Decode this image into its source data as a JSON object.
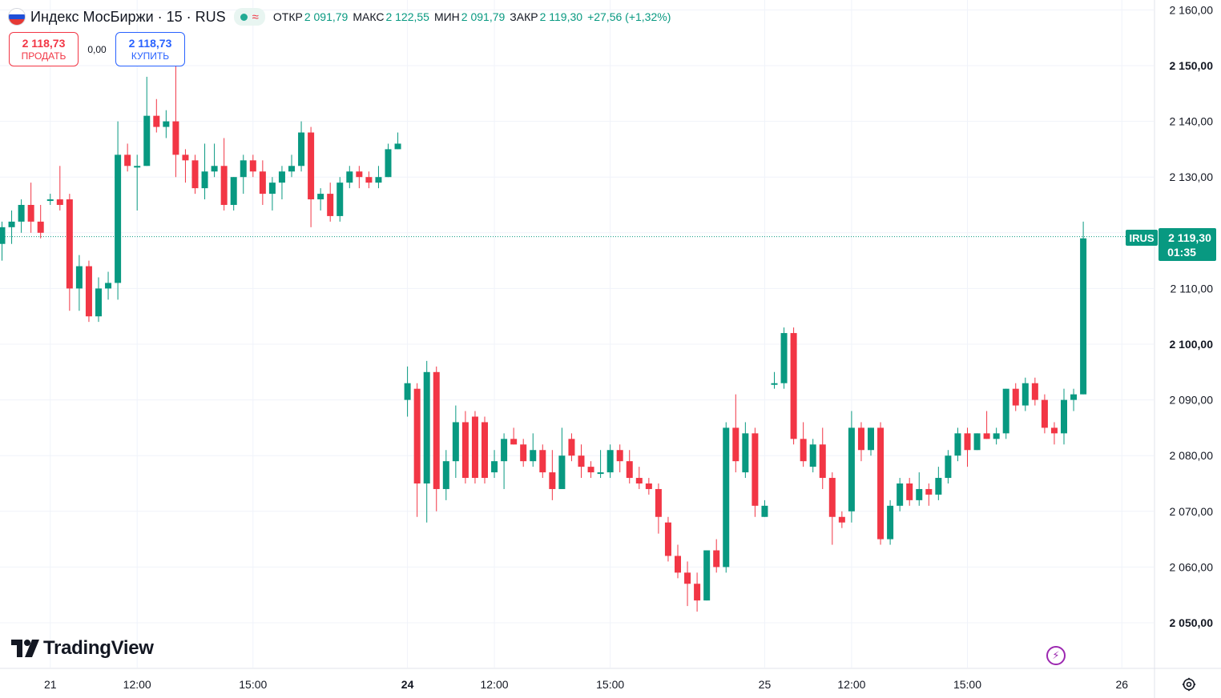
{
  "header": {
    "title": "Индекс МосБиржи · 15 · RUS",
    "status_wave": "≈",
    "ohlc": [
      {
        "label": "ОТКР",
        "value": "2 091,79"
      },
      {
        "label": "МАКС",
        "value": "2 122,55"
      },
      {
        "label": "МИН",
        "value": "2 091,79"
      },
      {
        "label": "ЗАКР",
        "value": "2 119,30"
      },
      {
        "label": "",
        "value": "+27,56 (+1,32%)"
      }
    ]
  },
  "trade": {
    "sell_price": "2 118,73",
    "sell_label": "ПРОДАТЬ",
    "spread": "0,00",
    "buy_price": "2 118,73",
    "buy_label": "КУПИТЬ"
  },
  "price_label": {
    "symbol": "IRUS",
    "price": "2 119,30",
    "countdown": "01:35"
  },
  "logo": {
    "text": "TradingView"
  },
  "colors": {
    "up": "#089981",
    "down": "#f23645",
    "grid": "#f0f3fa",
    "purple": "#9c27b0"
  },
  "chart_data": {
    "type": "candlestick",
    "ylim": [
      2044,
      2162
    ],
    "y_ticks": [
      {
        "v": 2160,
        "label": "2 160,00"
      },
      {
        "v": 2150,
        "label": "2 150,00"
      },
      {
        "v": 2140,
        "label": "2 140,00"
      },
      {
        "v": 2130,
        "label": "2 130,00"
      },
      {
        "v": 2120,
        "label": "2 120,00"
      },
      {
        "v": 2110,
        "label": "2 110,00"
      },
      {
        "v": 2100,
        "label": "2 100,00"
      },
      {
        "v": 2090,
        "label": "2 090,00"
      },
      {
        "v": 2080,
        "label": "2 080,00"
      },
      {
        "v": 2070,
        "label": "2 070,00"
      },
      {
        "v": 2060,
        "label": "2 060,00"
      },
      {
        "v": 2050,
        "label": "2 050,00"
      }
    ],
    "x_ticks": [
      {
        "i": 5,
        "label": "21",
        "bold": false
      },
      {
        "i": 14,
        "label": "12:00",
        "bold": false
      },
      {
        "i": 26,
        "label": "15:00",
        "bold": false
      },
      {
        "i": 42,
        "label": "24",
        "bold": true
      },
      {
        "i": 51,
        "label": "12:00",
        "bold": false
      },
      {
        "i": 63,
        "label": "15:00",
        "bold": false
      },
      {
        "i": 79,
        "label": "25",
        "bold": false
      },
      {
        "i": 88,
        "label": "12:00",
        "bold": false
      },
      {
        "i": 100,
        "label": "15:00",
        "bold": false
      },
      {
        "i": 116,
        "label": "26",
        "bold": false
      }
    ],
    "last_price": 2119.3,
    "candles": [
      [
        2118,
        2122,
        2115,
        2121
      ],
      [
        2121,
        2124,
        2118,
        2122
      ],
      [
        2122,
        2126,
        2120,
        2125
      ],
      [
        2125,
        2129,
        2120,
        2122
      ],
      [
        2122,
        2125,
        2119,
        2120
      ],
      [
        2126,
        2127,
        2125,
        2126
      ],
      [
        2126,
        2132,
        2124,
        2125
      ],
      [
        2126,
        2127,
        2106,
        2110
      ],
      [
        2110,
        2116,
        2106,
        2114
      ],
      [
        2114,
        2115,
        2104,
        2105
      ],
      [
        2105,
        2112,
        2104,
        2110
      ],
      [
        2110,
        2113,
        2108,
        2111
      ],
      [
        2111,
        2140,
        2108,
        2134
      ],
      [
        2134,
        2136,
        2131,
        2132
      ],
      [
        2132,
        2134,
        2124,
        2132
      ],
      [
        2132,
        2148,
        2132,
        2141
      ],
      [
        2141,
        2144,
        2138,
        2139
      ],
      [
        2139,
        2142,
        2137,
        2140
      ],
      [
        2140,
        2150,
        2130,
        2134
      ],
      [
        2134,
        2135,
        2129,
        2133
      ],
      [
        2133,
        2134,
        2127,
        2128
      ],
      [
        2128,
        2136,
        2126,
        2131
      ],
      [
        2131,
        2136,
        2130,
        2132
      ],
      [
        2132,
        2137,
        2124,
        2125
      ],
      [
        2125,
        2130,
        2124,
        2130
      ],
      [
        2130,
        2134,
        2127,
        2133
      ],
      [
        2133,
        2134,
        2130,
        2131
      ],
      [
        2131,
        2133,
        2125,
        2127
      ],
      [
        2127,
        2130,
        2124,
        2129
      ],
      [
        2129,
        2132,
        2126,
        2131
      ],
      [
        2131,
        2134,
        2130,
        2132
      ],
      [
        2132,
        2140,
        2131,
        2138
      ],
      [
        2138,
        2139,
        2121,
        2126
      ],
      [
        2126,
        2128,
        2124,
        2127
      ],
      [
        2127,
        2129,
        2122,
        2123
      ],
      [
        2123,
        2130,
        2122,
        2129
      ],
      [
        2129,
        2132,
        2128,
        2131
      ],
      [
        2131,
        2132,
        2128,
        2130
      ],
      [
        2130,
        2131,
        2128,
        2129
      ],
      [
        2129,
        2132,
        2128,
        2130
      ],
      [
        2130,
        2136,
        2130,
        2135
      ],
      [
        2135,
        2138,
        2135,
        2136
      ],
      [
        2090,
        2096,
        2087,
        2093
      ],
      [
        2092,
        2093,
        2069,
        2075
      ],
      [
        2075,
        2097,
        2068,
        2095
      ],
      [
        2095,
        2096,
        2070,
        2074
      ],
      [
        2074,
        2081,
        2072,
        2079
      ],
      [
        2079,
        2089,
        2076,
        2086
      ],
      [
        2086,
        2088,
        2075,
        2076
      ],
      [
        2087,
        2088,
        2075,
        2076
      ],
      [
        2086,
        2087,
        2075,
        2076
      ],
      [
        2077,
        2081,
        2076,
        2079
      ],
      [
        2079,
        2084,
        2074,
        2083
      ],
      [
        2083,
        2085,
        2082,
        2082
      ],
      [
        2082,
        2083,
        2078,
        2079
      ],
      [
        2079,
        2084,
        2078,
        2081
      ],
      [
        2081,
        2082,
        2076,
        2077
      ],
      [
        2077,
        2081,
        2072,
        2074
      ],
      [
        2074,
        2085,
        2074,
        2080
      ],
      [
        2083,
        2084,
        2079,
        2080
      ],
      [
        2080,
        2082,
        2076,
        2078
      ],
      [
        2078,
        2079,
        2076,
        2077
      ],
      [
        2077,
        2081,
        2076,
        2077
      ],
      [
        2077,
        2082,
        2076,
        2081
      ],
      [
        2081,
        2082,
        2077,
        2079
      ],
      [
        2079,
        2081,
        2075,
        2076
      ],
      [
        2076,
        2078,
        2074,
        2075
      ],
      [
        2075,
        2076,
        2073,
        2074
      ],
      [
        2074,
        2075,
        2066,
        2069
      ],
      [
        2068,
        2069,
        2061,
        2062
      ],
      [
        2062,
        2064,
        2058,
        2059
      ],
      [
        2059,
        2061,
        2053,
        2057
      ],
      [
        2057,
        2059,
        2052,
        2054
      ],
      [
        2054,
        2063,
        2054,
        2063
      ],
      [
        2063,
        2065,
        2059,
        2060
      ],
      [
        2060,
        2086,
        2059,
        2085
      ],
      [
        2085,
        2091,
        2077,
        2079
      ],
      [
        2077,
        2086,
        2076,
        2084
      ],
      [
        2084,
        2085,
        2069,
        2071
      ],
      [
        2069,
        2072,
        2069,
        2071
      ],
      [
        2093,
        2095,
        2092,
        2093
      ],
      [
        2093,
        2103,
        2092,
        2102
      ],
      [
        2102,
        2103,
        2082,
        2083
      ],
      [
        2083,
        2086,
        2078,
        2079
      ],
      [
        2078,
        2083,
        2077,
        2082
      ],
      [
        2082,
        2085,
        2074,
        2076
      ],
      [
        2076,
        2077,
        2064,
        2069
      ],
      [
        2069,
        2070,
        2067,
        2068
      ],
      [
        2070,
        2088,
        2068,
        2085
      ],
      [
        2085,
        2086,
        2079,
        2081
      ],
      [
        2081,
        2085,
        2080,
        2085
      ],
      [
        2085,
        2086,
        2064,
        2065
      ],
      [
        2065,
        2072,
        2064,
        2071
      ],
      [
        2071,
        2076,
        2070,
        2075
      ],
      [
        2075,
        2076,
        2071,
        2072
      ],
      [
        2072,
        2077,
        2071,
        2074
      ],
      [
        2074,
        2075,
        2071,
        2073
      ],
      [
        2073,
        2078,
        2072,
        2076
      ],
      [
        2076,
        2081,
        2075,
        2080
      ],
      [
        2080,
        2085,
        2079,
        2084
      ],
      [
        2084,
        2085,
        2078,
        2081
      ],
      [
        2081,
        2084,
        2081,
        2084
      ],
      [
        2084,
        2088,
        2083,
        2083
      ],
      [
        2083,
        2085,
        2082,
        2084
      ],
      [
        2084,
        2092,
        2083,
        2092
      ],
      [
        2092,
        2093,
        2088,
        2089
      ],
      [
        2089,
        2094,
        2088,
        2093
      ],
      [
        2093,
        2094,
        2089,
        2090
      ],
      [
        2090,
        2091,
        2084,
        2085
      ],
      [
        2085,
        2086,
        2082,
        2084
      ],
      [
        2084,
        2092,
        2082,
        2090
      ],
      [
        2090,
        2092,
        2088,
        2091
      ],
      [
        2091,
        2122,
        2091,
        2119
      ]
    ]
  }
}
